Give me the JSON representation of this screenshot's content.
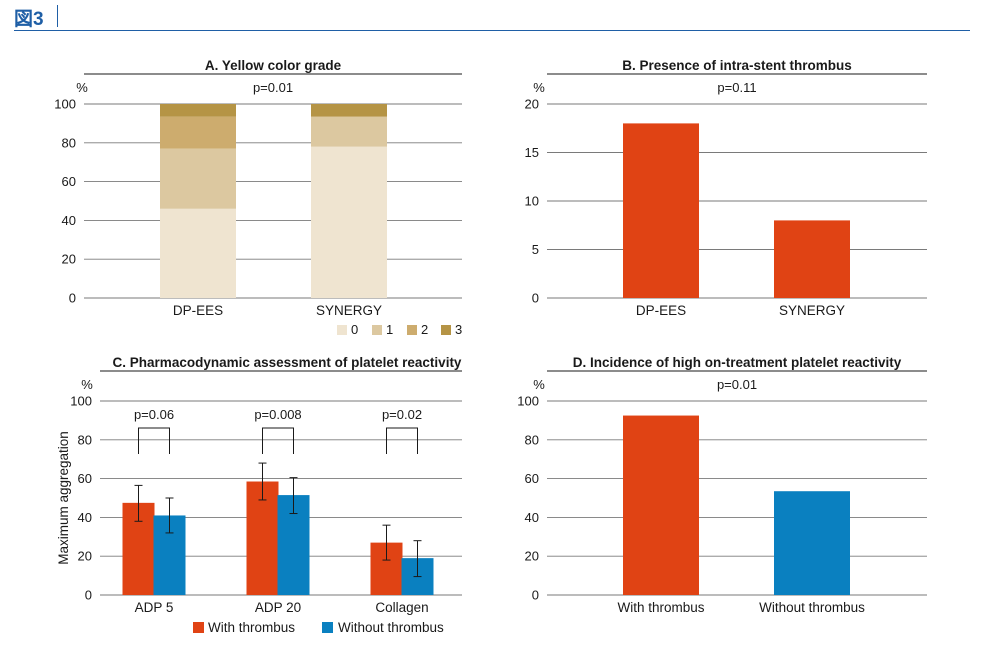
{
  "figure_label": "図3",
  "colors": {
    "accent_blue": "#1f5fa6",
    "red": "#e04314",
    "blue": "#0a80c0",
    "grade0": "#efe4d0",
    "grade1": "#dcc8a0",
    "grade2": "#cdac6e",
    "grade3": "#b59445"
  },
  "chart_data": [
    {
      "id": "A",
      "type": "bar",
      "stacked": true,
      "title": "A. Yellow color grade",
      "unit": "%",
      "pvalue": "p=0.01",
      "categories": [
        "DP-EES",
        "SYNERGY"
      ],
      "series": [
        {
          "name": "0",
          "values": [
            46,
            78
          ]
        },
        {
          "name": "1",
          "values": [
            31,
            15.5
          ]
        },
        {
          "name": "2",
          "values": [
            16.5,
            0
          ]
        },
        {
          "name": "3",
          "values": [
            6.5,
            6.5
          ]
        }
      ],
      "ylim": [
        0,
        100
      ],
      "yticks": [
        0,
        20,
        40,
        60,
        80,
        100
      ],
      "legend": [
        "0",
        "1",
        "2",
        "3"
      ],
      "legend_position": "bottom-right"
    },
    {
      "id": "B",
      "type": "bar",
      "title": "B. Presence of intra-stent thrombus",
      "unit": "%",
      "pvalue": "p=0.11",
      "categories": [
        "DP-EES",
        "SYNERGY"
      ],
      "values": [
        18,
        8
      ],
      "ylim": [
        0,
        20
      ],
      "yticks": [
        0,
        5,
        10,
        15,
        20
      ]
    },
    {
      "id": "C",
      "type": "bar",
      "grouped": true,
      "title": "C. Pharmacodynamic assessment of platelet reactivity",
      "unit": "%",
      "ylabel": "Maximum aggregation",
      "categories": [
        "ADP 5",
        "ADP 20",
        "Collagen"
      ],
      "pvalues": [
        "p=0.06",
        "p=0.008",
        "p=0.02"
      ],
      "series": [
        {
          "name": "With thrombus",
          "values": [
            47.5,
            58.5,
            27
          ],
          "err_low": [
            38,
            49,
            18
          ],
          "err_high": [
            56.5,
            68,
            36
          ]
        },
        {
          "name": "Without thrombus",
          "values": [
            41,
            51.5,
            19
          ],
          "err_low": [
            32,
            42,
            9.5
          ],
          "err_high": [
            50,
            60.5,
            28
          ]
        }
      ],
      "ylim": [
        0,
        100
      ],
      "yticks": [
        0,
        20,
        40,
        60,
        80,
        100
      ],
      "legend": [
        "With thrombus",
        "Without thrombus"
      ],
      "legend_position": "bottom"
    },
    {
      "id": "D",
      "type": "bar",
      "title": "D. Incidence of high on-treatment platelet reactivity",
      "unit": "%",
      "pvalue": "p=0.01",
      "categories": [
        "With thrombus",
        "Without thrombus"
      ],
      "values": [
        92.5,
        53.5
      ],
      "ylim": [
        0,
        100
      ],
      "yticks": [
        0,
        20,
        40,
        60,
        80,
        100
      ]
    }
  ]
}
